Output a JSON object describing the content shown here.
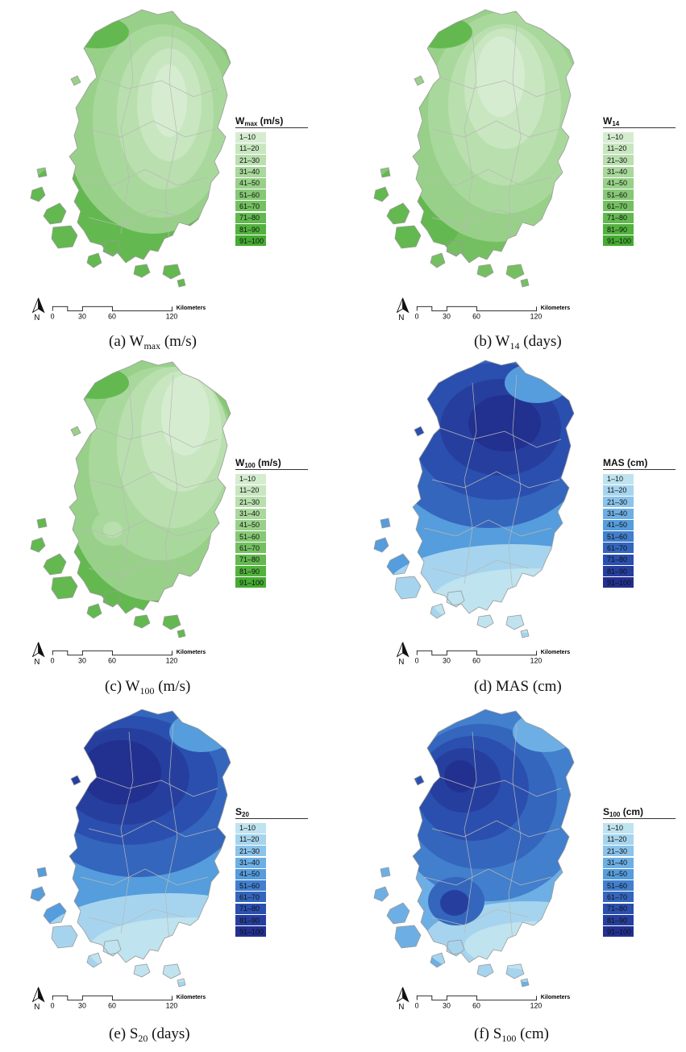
{
  "colors": {
    "green": [
      "#d6ecd0",
      "#c8e6c0",
      "#b9dfae",
      "#a9d89c",
      "#98d089",
      "#86c875",
      "#74c061",
      "#63b94f",
      "#53b23e",
      "#45ab31"
    ],
    "blue": [
      "#bfe3ef",
      "#a6d4ee",
      "#8bc3ea",
      "#6dafe4",
      "#559ddc",
      "#427fcc",
      "#3466bd",
      "#2b4fae",
      "#263f9f",
      "#223090"
    ]
  },
  "legend_ranges": [
    "1–10",
    "11–20",
    "21–30",
    "31–40",
    "41–50",
    "51–60",
    "61–70",
    "71–80",
    "81–90",
    "91–100"
  ],
  "scale": {
    "ticks": [
      "0",
      "30",
      "60",
      "120"
    ],
    "unit": "Kilometers",
    "north": "N"
  },
  "panels": [
    {
      "id": "a",
      "legend": {
        "main": "W",
        "sub": "max",
        "unit": " (m/s)"
      },
      "caption": {
        "prefix": "(a)  W",
        "sub": "max",
        "suffix": "  (m/s)"
      },
      "palette": "green",
      "pattern": "a"
    },
    {
      "id": "b",
      "legend": {
        "main": "W",
        "sub": "14",
        "unit": ""
      },
      "caption": {
        "prefix": "(b)  W",
        "sub": "14",
        "suffix": "  (days)"
      },
      "palette": "green",
      "pattern": "b"
    },
    {
      "id": "c",
      "legend": {
        "main": "W",
        "sub": "100",
        "unit": " (m/s)"
      },
      "caption": {
        "prefix": "(c)  W",
        "sub": "100",
        "suffix": "  (m/s)"
      },
      "palette": "green",
      "pattern": "c"
    },
    {
      "id": "d",
      "legend": {
        "main": "MAS",
        "sub": "",
        "unit": " (cm)"
      },
      "caption": {
        "prefix": "(d)  MAS  (cm)",
        "sub": "",
        "suffix": ""
      },
      "palette": "blue",
      "pattern": "d"
    },
    {
      "id": "e",
      "legend": {
        "main": "S",
        "sub": "20",
        "unit": ""
      },
      "caption": {
        "prefix": "(e)  S",
        "sub": "20",
        "suffix": "  (days)"
      },
      "palette": "blue",
      "pattern": "e"
    },
    {
      "id": "f",
      "legend": {
        "main": "S",
        "sub": "100",
        "unit": " (cm)"
      },
      "caption": {
        "prefix": "(f)  S",
        "sub": "100",
        "suffix": "  (cm)"
      },
      "palette": "blue",
      "pattern": "f"
    }
  ]
}
